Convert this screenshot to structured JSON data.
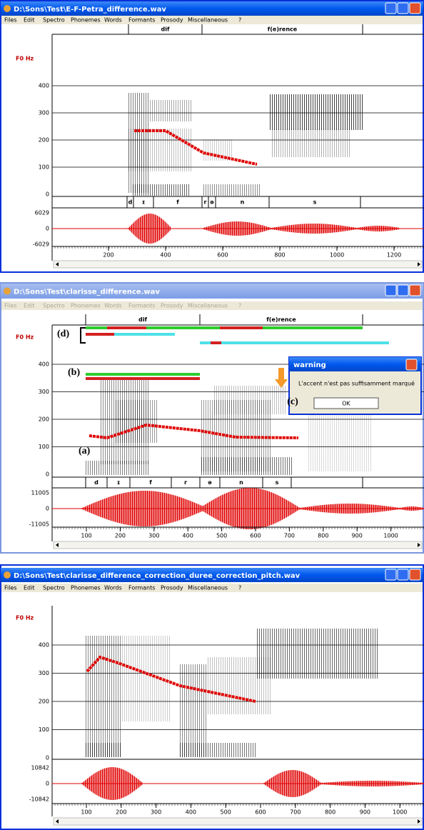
{
  "menu": [
    "Files",
    "Edit",
    "Spectro",
    "Phonemes",
    "Words",
    "Formants",
    "Prosody",
    "Miscellaneous",
    "?"
  ],
  "windows": [
    {
      "title": "D:\\Sons\\Test\\E-F-Petra_difference.wav",
      "words": [
        "dif",
        "f(e)rence"
      ],
      "f0_label": "F0 Hz",
      "f0_ticks": [
        400,
        300,
        200,
        100,
        0
      ],
      "amp_ticks": [
        6029,
        0,
        -6029
      ],
      "time_ticks": [
        200,
        400,
        600,
        800,
        1000,
        1200
      ],
      "phonemes": [
        "d",
        "ɪ",
        "f",
        "r",
        "ə",
        "n",
        "s"
      ]
    },
    {
      "title": "D:\\Sons\\Test\\clarisse_difference.wav",
      "words": [
        "dif",
        "f(e)rence"
      ],
      "f0_label": "F0 Hz",
      "f0_ticks": [
        400,
        300,
        200,
        100,
        0
      ],
      "amp_ticks": [
        11005,
        0,
        -11005
      ],
      "time_ticks": [
        100,
        200,
        300,
        400,
        500,
        600,
        700,
        800,
        900,
        1000
      ],
      "phonemes": [
        "d",
        "ɪ",
        "f",
        "r",
        "ə",
        "n",
        "s"
      ]
    },
    {
      "title": "D:\\Sons\\Test\\clarisse_difference_correction_duree_correction_pitch.wav",
      "words": [],
      "f0_label": "F0 Hz",
      "f0_ticks": [
        400,
        300,
        200,
        100,
        0
      ],
      "amp_ticks": [
        10842,
        0,
        -10842
      ],
      "time_ticks": [
        100,
        200,
        300,
        400,
        500,
        600,
        700,
        800,
        900,
        1000
      ],
      "phonemes": []
    }
  ],
  "dialog": {
    "title": "warning",
    "message": "L'accent n'est pas suffisamment marqué",
    "button": "OK"
  },
  "annotations": [
    "(a)",
    "(b)",
    "(c)",
    "(d)"
  ]
}
